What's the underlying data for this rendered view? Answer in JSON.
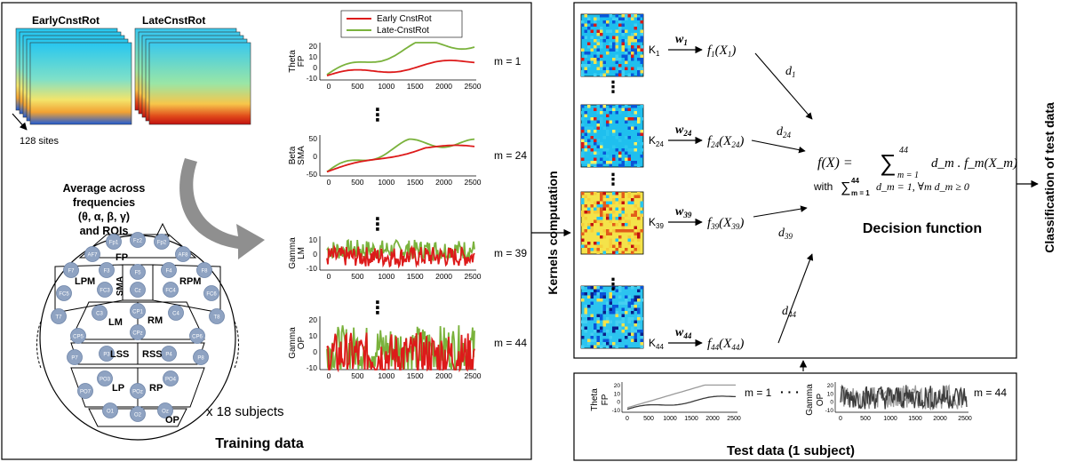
{
  "training": {
    "cond_early": "EarlyCnstRot",
    "cond_late": "LateCnstRot",
    "sites_label": "128 sites",
    "avg_line1": "Average across",
    "avg_line2": "frequencies",
    "avg_line3": "(θ, α, β, γ)",
    "avg_line4": "and ROIs",
    "subjects_label": "x 18 subjects",
    "footer": "Training data",
    "rois": [
      "FP",
      "LPM",
      "SMA",
      "RPM",
      "LM",
      "RM",
      "LSS",
      "RSS",
      "LP",
      "RP",
      "OP"
    ],
    "electrodes": [
      "Fp1",
      "Fz2",
      "Fp2",
      "AF7",
      "AF8",
      "F7",
      "F3",
      "F4",
      "F8",
      "F5",
      "FC3",
      "FC4",
      "FC5",
      "FC6",
      "Cz",
      "C3",
      "C4",
      "T7",
      "T8",
      "CP1",
      "CP5",
      "CP6",
      "CPz",
      "P3",
      "P4",
      "P7",
      "P8",
      "PO3",
      "PO4",
      "PO7",
      "POz",
      "O1",
      "O2",
      "Oz"
    ]
  },
  "legend": {
    "early": "Early CnstRot",
    "late": "Late-CnstRot"
  },
  "colors": {
    "early": "#dd1a1a",
    "late": "#7ab23c",
    "arrow": "#8f8f8f"
  },
  "plots": [
    {
      "band": "Theta",
      "roi": "FP",
      "m": "m = 1",
      "yticks": [
        "20",
        "10",
        "0",
        "-10"
      ]
    },
    {
      "band": "Beta",
      "roi": "SMA",
      "m": "m = 24",
      "yticks": [
        "50",
        "0",
        "-50"
      ]
    },
    {
      "band": "Gamma",
      "roi": "LM",
      "m": "m = 39",
      "yticks": [
        "10",
        "0",
        "-10"
      ]
    },
    {
      "band": "Gamma",
      "roi": "OP",
      "m": "m = 44",
      "yticks": [
        "20",
        "10",
        "0",
        "-10"
      ]
    }
  ],
  "xticks": [
    "0",
    "500",
    "1000",
    "1500",
    "2000",
    "2500"
  ],
  "dots": "⋮",
  "kernels": {
    "axis_label": "Kernels computation",
    "items": [
      {
        "k": "K",
        "sub": "1",
        "w": "w",
        "wsub": "1",
        "f": "f",
        "fsub": "1",
        "x": "X",
        "xsub": "1",
        "d": "d",
        "dsub": "1"
      },
      {
        "k": "K",
        "sub": "24",
        "w": "w",
        "wsub": "24",
        "f": "f",
        "fsub": "24",
        "x": "X",
        "xsub": "24",
        "d": "d",
        "dsub": "24"
      },
      {
        "k": "K",
        "sub": "39",
        "w": "w",
        "wsub": "39",
        "f": "f",
        "fsub": "39",
        "x": "X",
        "xsub": "39",
        "d": "d",
        "dsub": "39"
      },
      {
        "k": "K",
        "sub": "44",
        "w": "w",
        "wsub": "44",
        "f": "f",
        "fsub": "44",
        "x": "X",
        "xsub": "44",
        "d": "d",
        "dsub": "44"
      }
    ]
  },
  "decision": {
    "formula_lhs": "f(X) = ",
    "sum": "∑",
    "sum_sup": "44",
    "sum_sub": "m = 1",
    "formula_rhs": "d_m . f_m(X_m)",
    "constraint_with": "with",
    "constraint_sum": "∑",
    "constraint_sup": "44",
    "constraint_sub": "m = 1",
    "constraint_rest": "d_m = 1, ∀m  d_m ≥ 0",
    "label": "Decision function"
  },
  "classification_label": "Classification of test data",
  "test": {
    "footer": "Test data (1 subject)",
    "band1": "Theta",
    "roi1": "FP",
    "m1": "m = 1",
    "band2": "Gamma",
    "roi2": "OP",
    "m2": "m = 44",
    "dots": "· · ·",
    "yticks": [
      "20",
      "10",
      "0",
      "-10"
    ]
  }
}
